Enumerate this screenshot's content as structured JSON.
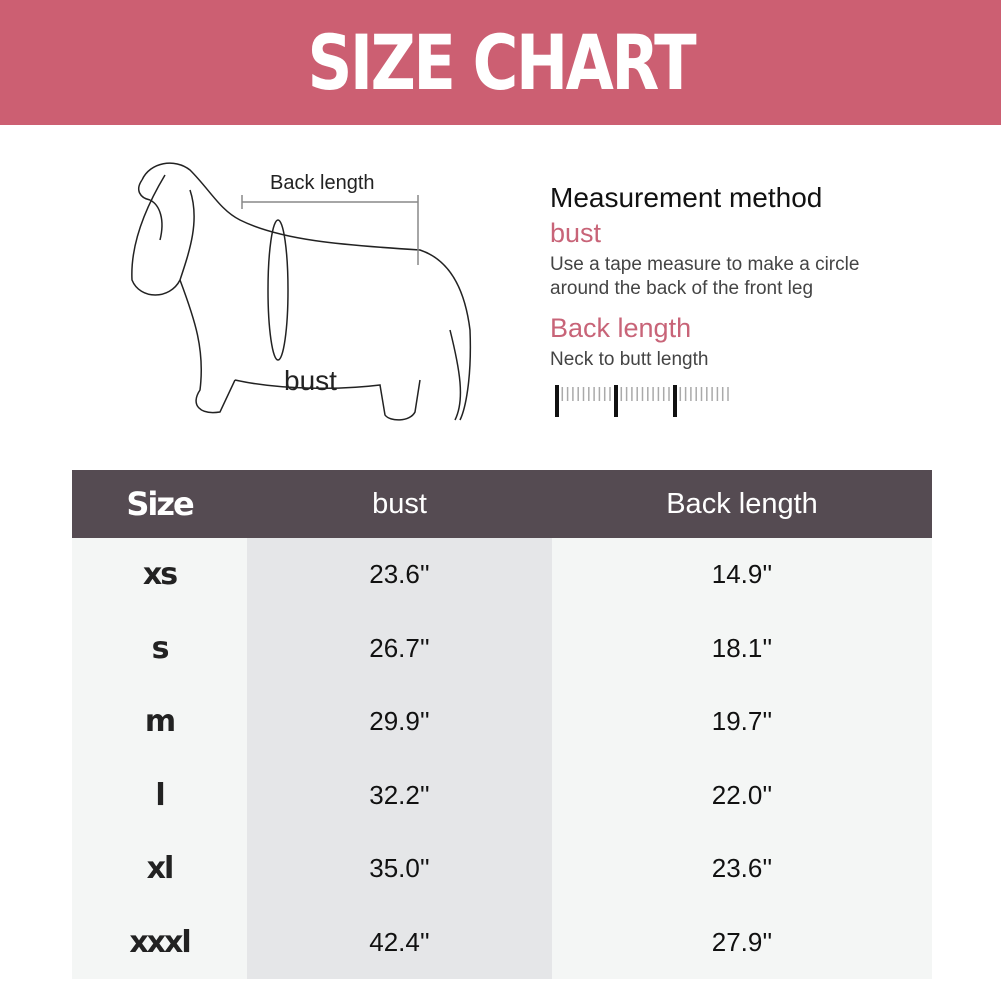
{
  "title": "SIZE CHART",
  "diagram": {
    "back_length_label": "Back length",
    "bust_label": "bust"
  },
  "method": {
    "title": "Measurement method",
    "bust_heading": "bust",
    "bust_text": "Use a tape measure to make a circle around the back of the front leg",
    "back_heading": "Back length",
    "back_text": "Neck to butt length"
  },
  "colors": {
    "banner": "#cc5f72",
    "table_header": "#554b52",
    "accent_text": "#c86478"
  },
  "table": {
    "headers": [
      "Size",
      "bust",
      "Back length"
    ],
    "rows": [
      [
        "xs",
        "23.6''",
        "14.9''"
      ],
      [
        "s",
        "26.7''",
        "18.1''"
      ],
      [
        "m",
        "29.9''",
        "19.7''"
      ],
      [
        "l",
        "32.2''",
        "22.0''"
      ],
      [
        "xl",
        "35.0''",
        "23.6''"
      ],
      [
        "xxxl",
        "42.4''",
        "27.9''"
      ]
    ]
  }
}
